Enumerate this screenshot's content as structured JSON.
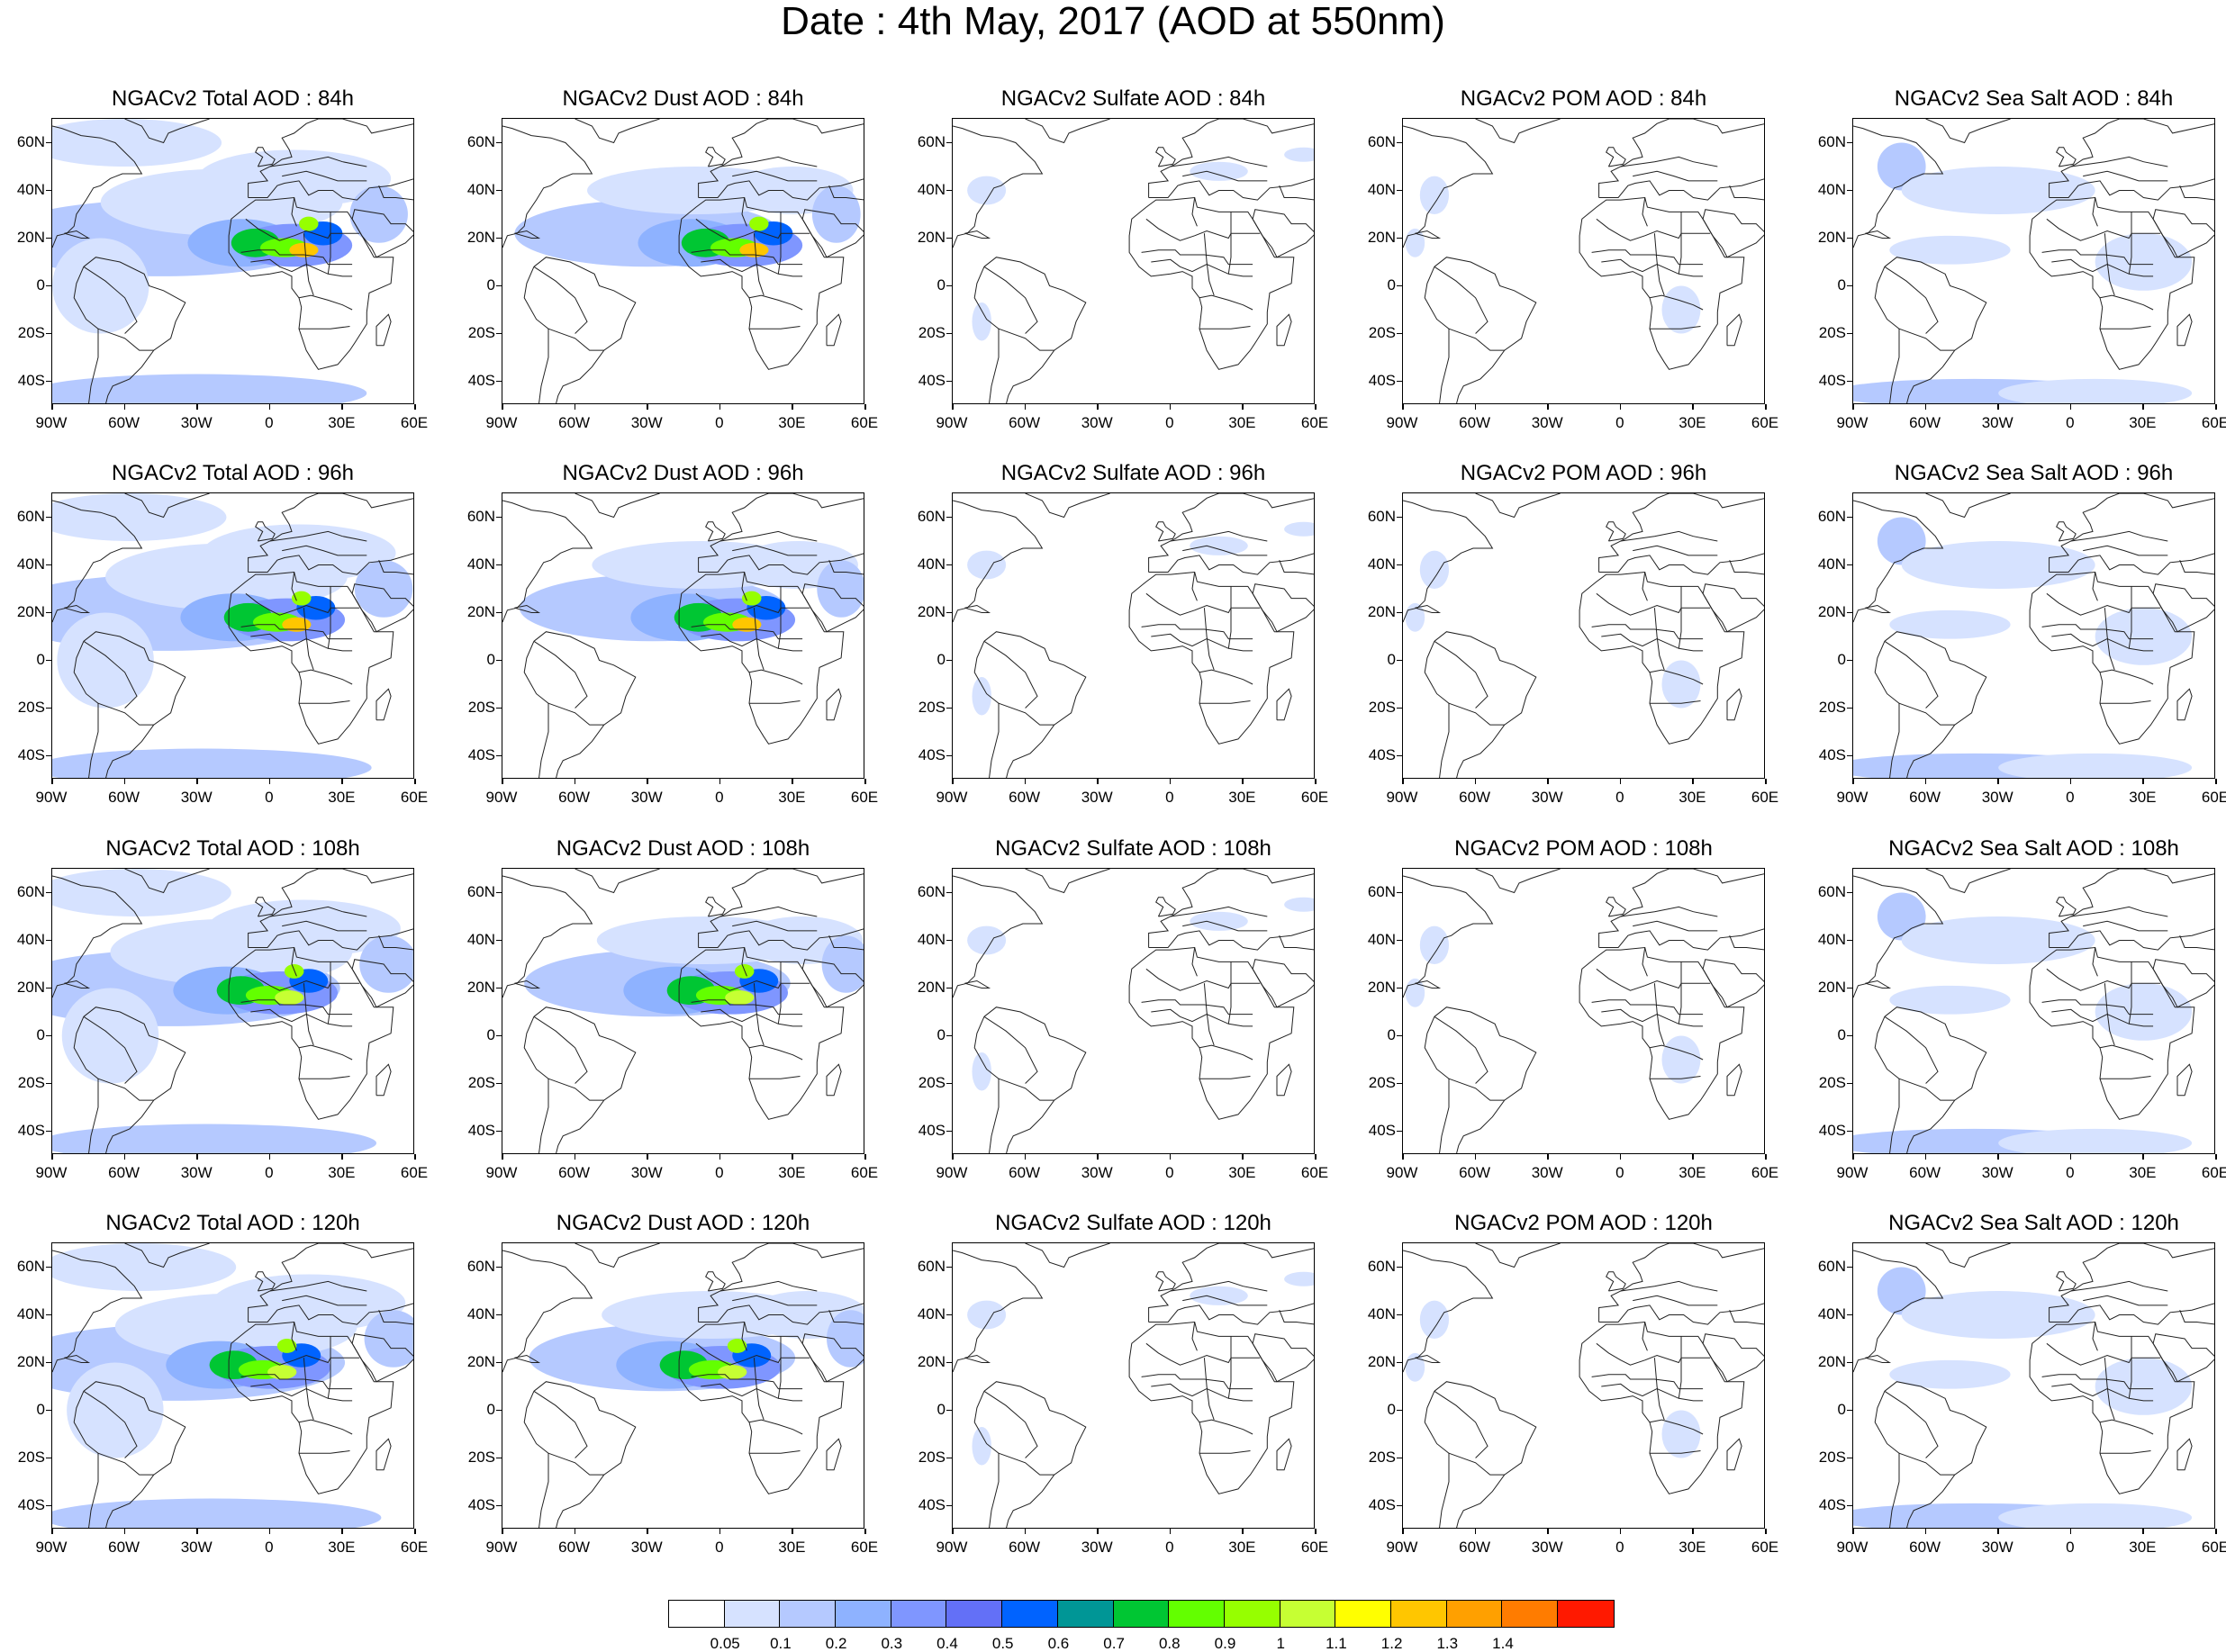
{
  "title": "Date : 4th May, 2017 (AOD at 550nm)",
  "row_hours": [
    "84h",
    "96h",
    "108h",
    "120h"
  ],
  "panels": [
    [
      "NGACv2 Total AOD : 84h",
      "NGACv2 Dust AOD : 84h",
      "NGACv2 Sulfate AOD : 84h",
      "NGACv2 POM AOD : 84h",
      "NGACv2 Sea Salt AOD : 84h"
    ],
    [
      "NGACv2 Total AOD : 96h",
      "NGACv2 Dust AOD : 96h",
      "NGACv2 Sulfate AOD : 96h",
      "NGACv2 POM AOD : 96h",
      "NGACv2 Sea Salt AOD : 96h"
    ],
    [
      "NGACv2 Total AOD : 108h",
      "NGACv2 Dust AOD : 108h",
      "NGACv2 Sulfate AOD : 108h",
      "NGACv2 POM AOD : 108h",
      "NGACv2 Sea Salt AOD : 108h"
    ],
    [
      "NGACv2 Total AOD : 120h",
      "NGACv2 Dust AOD : 120h",
      "NGACv2 Sulfate AOD : 120h",
      "NGACv2 POM AOD : 120h",
      "NGACv2 Sea Salt  AOD : 120h"
    ]
  ],
  "axes": {
    "lat_ticks": [
      "60N",
      "40N",
      "20N",
      "0",
      "20S",
      "40S"
    ],
    "lon_ticks": [
      "90W",
      "60W",
      "30W",
      "0",
      "30E",
      "60E"
    ],
    "lat_range": [
      -50,
      70
    ],
    "lon_range": [
      -90,
      60
    ]
  },
  "colorbar": {
    "labels": [
      "0.05",
      "0.1",
      "0.2",
      "0.3",
      "0.4",
      "0.5",
      "0.6",
      "0.7",
      "0.8",
      "0.9",
      "1",
      "1.1",
      "1.2",
      "1.3",
      "1.4"
    ],
    "colors": [
      "#ffffff",
      "#d6e2ff",
      "#b5c9ff",
      "#8eb2ff",
      "#7f96ff",
      "#6370f7",
      "#0063ff",
      "#009696",
      "#00c633",
      "#63ff00",
      "#96ff00",
      "#c6ff33",
      "#ffff00",
      "#ffc600",
      "#ffa000",
      "#ff7c00",
      "#ff1900"
    ]
  }
}
